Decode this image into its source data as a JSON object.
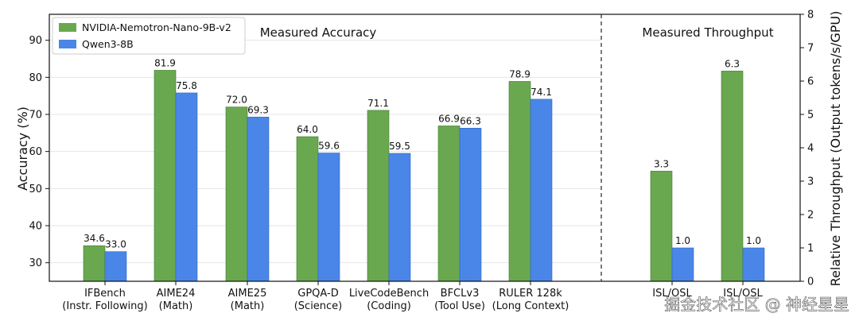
{
  "chart_data": {
    "type": "bar",
    "colors": {
      "nemotron": "#6aa84f",
      "qwen": "#4a86e8"
    },
    "legend_position": "top-left",
    "series": [
      {
        "name": "NVIDIA-Nemotron-Nano-9B-v2",
        "key": "nemotron"
      },
      {
        "name": "Qwen3-8B",
        "key": "qwen"
      }
    ],
    "accuracy": {
      "title": "Measured Accuracy",
      "ylabel": "Accuracy (%)",
      "ylim": [
        25,
        97
      ],
      "yticks": [
        30,
        40,
        50,
        60,
        70,
        80,
        90
      ],
      "categories": [
        [
          "IFBench",
          "(Instr. Following)"
        ],
        [
          "AIME24",
          "(Math)"
        ],
        [
          "AIME25",
          "(Math)"
        ],
        [
          "GPQA-D",
          "(Science)"
        ],
        [
          "LiveCodeBench",
          "(Coding)"
        ],
        [
          "BFCLv3",
          "(Tool Use)"
        ],
        [
          "RULER 128k",
          "(Long Context)"
        ]
      ],
      "values": {
        "nemotron": [
          34.6,
          81.9,
          72.0,
          64.0,
          71.1,
          66.9,
          78.9
        ],
        "qwen": [
          33.0,
          75.8,
          69.3,
          59.6,
          59.5,
          66.3,
          74.1
        ]
      },
      "labels": {
        "nemotron": [
          "34.6",
          "81.9",
          "72.0",
          "64.0",
          "71.1",
          "66.9",
          "78.9"
        ],
        "qwen": [
          "33.0",
          "75.8",
          "69.3",
          "59.6",
          "59.5",
          "66.3",
          "74.1"
        ]
      }
    },
    "throughput": {
      "title": "Measured Throughput",
      "ylabel": "Relative Throughput (Output tokens/s/GPU)",
      "ylim": [
        0,
        8
      ],
      "yticks": [
        0,
        1,
        2,
        3,
        4,
        5,
        6,
        7,
        8
      ],
      "categories": [
        [
          "ISL/OSL",
          ""
        ],
        [
          "ISL/OSL",
          ""
        ]
      ],
      "values": {
        "nemotron": [
          3.3,
          6.3
        ],
        "qwen": [
          1.0,
          1.0
        ]
      },
      "labels": {
        "nemotron": [
          "3.3",
          "6.3"
        ],
        "qwen": [
          "1.0",
          "1.0"
        ]
      }
    }
  },
  "watermark": "掘金技术社区 @ 神经星星"
}
